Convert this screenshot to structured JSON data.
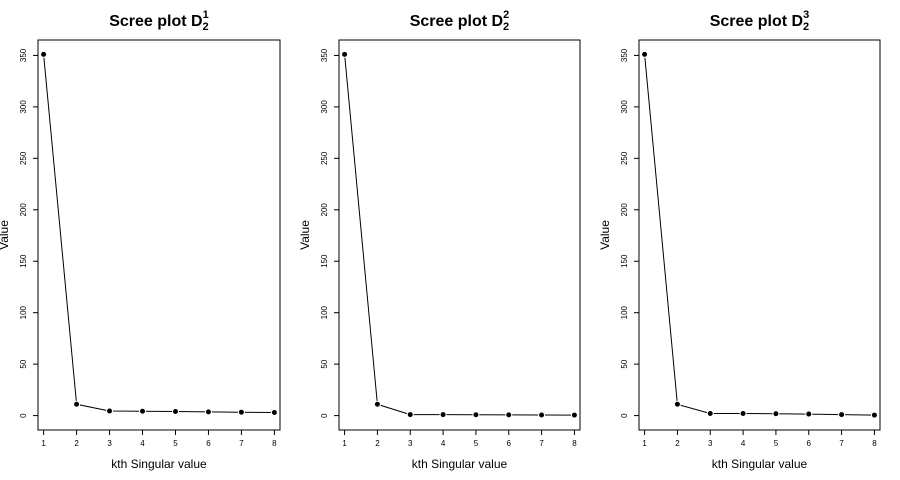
{
  "chart_data": [
    {
      "type": "line",
      "title": {
        "base": "Scree plot D",
        "sub": "2",
        "sup": "1"
      },
      "xlabel": "kth Singular value",
      "ylabel": "Value",
      "x": [
        1,
        2,
        3,
        4,
        5,
        6,
        7,
        8
      ],
      "values": [
        351,
        11,
        4.5,
        4.2,
        4,
        3.6,
        3.3,
        3
      ],
      "xlim": [
        0.83,
        8.17
      ],
      "ylim": [
        -14,
        365
      ],
      "xticks": [
        1,
        2,
        3,
        4,
        5,
        6,
        7,
        8
      ],
      "yticks": [
        0,
        50,
        100,
        150,
        200,
        250,
        300,
        350
      ],
      "grid": false,
      "marker": "filled-circle"
    },
    {
      "type": "line",
      "title": {
        "base": "Scree plot D",
        "sub": "2",
        "sup": "2"
      },
      "xlabel": "kth Singular value",
      "ylabel": "Value",
      "x": [
        1,
        2,
        3,
        4,
        5,
        6,
        7,
        8
      ],
      "values": [
        351,
        11,
        1,
        1,
        0.8,
        0.7,
        0.6,
        0.5
      ],
      "xlim": [
        0.83,
        8.17
      ],
      "ylim": [
        -14,
        365
      ],
      "xticks": [
        1,
        2,
        3,
        4,
        5,
        6,
        7,
        8
      ],
      "yticks": [
        0,
        50,
        100,
        150,
        200,
        250,
        300,
        350
      ],
      "grid": false,
      "marker": "filled-circle"
    },
    {
      "type": "line",
      "title": {
        "base": "Scree plot D",
        "sub": "2",
        "sup": "3"
      },
      "xlabel": "kth Singular value",
      "ylabel": "Value",
      "x": [
        1,
        2,
        3,
        4,
        5,
        6,
        7,
        8
      ],
      "values": [
        351,
        11,
        2,
        2,
        1.8,
        1.5,
        1,
        0.5
      ],
      "xlim": [
        0.83,
        8.17
      ],
      "ylim": [
        -14,
        365
      ],
      "xticks": [
        1,
        2,
        3,
        4,
        5,
        6,
        7,
        8
      ],
      "yticks": [
        0,
        50,
        100,
        150,
        200,
        250,
        300,
        350
      ],
      "grid": false,
      "marker": "filled-circle"
    }
  ]
}
